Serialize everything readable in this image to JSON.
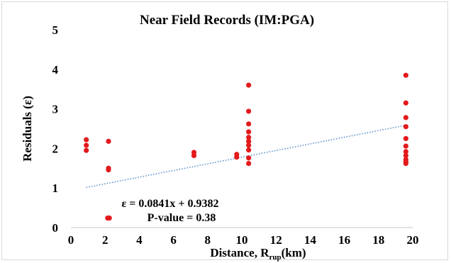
{
  "chart_data": {
    "type": "scatter",
    "title": "Near Field Records (IM:PGA)",
    "xlabel_main": "Distance, R",
    "xlabel_sub": "rup",
    "xlabel_unit": "(km)",
    "ylabel": "Residuals (ε)",
    "xlim": [
      0,
      20
    ],
    "ylim": [
      0,
      5
    ],
    "x_ticks": [
      "0",
      "2",
      "4",
      "6",
      "8",
      "10",
      "12",
      "14",
      "16",
      "18",
      "20"
    ],
    "y_ticks": [
      "0",
      "1",
      "2",
      "3",
      "4",
      "5"
    ],
    "grid": false,
    "points": [
      {
        "x": 0.9,
        "y": 2.22
      },
      {
        "x": 0.9,
        "y": 2.08
      },
      {
        "x": 0.9,
        "y": 1.95
      },
      {
        "x": 2.2,
        "y": 2.18
      },
      {
        "x": 2.2,
        "y": 1.5
      },
      {
        "x": 2.2,
        "y": 1.46
      },
      {
        "x": 2.15,
        "y": 0.24
      },
      {
        "x": 2.25,
        "y": 0.24
      },
      {
        "x": 7.2,
        "y": 1.9
      },
      {
        "x": 7.2,
        "y": 1.82
      },
      {
        "x": 9.7,
        "y": 1.85
      },
      {
        "x": 9.7,
        "y": 1.78
      },
      {
        "x": 10.4,
        "y": 3.6
      },
      {
        "x": 10.4,
        "y": 2.94
      },
      {
        "x": 10.4,
        "y": 2.62
      },
      {
        "x": 10.4,
        "y": 2.42
      },
      {
        "x": 10.4,
        "y": 2.28
      },
      {
        "x": 10.4,
        "y": 2.18
      },
      {
        "x": 10.4,
        "y": 2.08
      },
      {
        "x": 10.4,
        "y": 1.96
      },
      {
        "x": 10.4,
        "y": 1.76
      },
      {
        "x": 10.4,
        "y": 1.62
      },
      {
        "x": 19.6,
        "y": 3.85
      },
      {
        "x": 19.6,
        "y": 3.15
      },
      {
        "x": 19.6,
        "y": 2.78
      },
      {
        "x": 19.6,
        "y": 2.55
      },
      {
        "x": 19.6,
        "y": 2.25
      },
      {
        "x": 19.6,
        "y": 2.06
      },
      {
        "x": 19.6,
        "y": 1.92
      },
      {
        "x": 19.6,
        "y": 1.82
      },
      {
        "x": 19.6,
        "y": 1.72
      },
      {
        "x": 19.6,
        "y": 1.66
      },
      {
        "x": 19.6,
        "y": 1.62
      }
    ],
    "trendline": {
      "slope": 0.0841,
      "intercept": 0.9382,
      "x_range": [
        0.9,
        19.6
      ],
      "style": "dotted"
    },
    "annotations": [
      "ε = 0.0841x + 0.9382",
      "P-value = 0.38"
    ],
    "colors": {
      "points": "#e31a1c",
      "trendline": "#5b8fc7"
    }
  }
}
